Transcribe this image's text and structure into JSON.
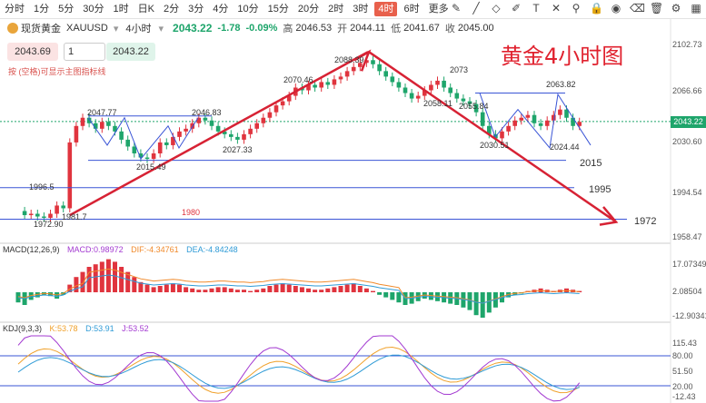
{
  "toolbar": {
    "timeframes": [
      "分时",
      "1分",
      "5分",
      "30分",
      "1时",
      "日K",
      "2分",
      "3分",
      "4分",
      "10分",
      "15分",
      "20分",
      "2时",
      "3时",
      "4时",
      "6时",
      "更多"
    ],
    "active_index": 14,
    "tool_icons": [
      "pencil-icon",
      "trend-icon",
      "shapes-icon",
      "brush-icon",
      "text-icon",
      "cross-icon",
      "magnet-icon",
      "lock-icon",
      "eye-icon",
      "eraser-icon",
      "delete-icon",
      "settings-icon",
      "layout-icon"
    ]
  },
  "info": {
    "symbol": "现货黄金",
    "code": "XAUUSD",
    "timeframe": "4小时",
    "price": "2043.22",
    "change": "-1.78",
    "change_pct": "-0.09%",
    "high_label": "高",
    "high": "2046.53",
    "open_label": "开",
    "open": "2044.11",
    "low_label": "低",
    "low": "2041.67",
    "close_label": "收",
    "close": "2045.00"
  },
  "order": {
    "sell": "2043.69",
    "qty": "1",
    "buy": "2043.22"
  },
  "hint": "按 (空格)可显示主图指标线",
  "title": "黄金4小时图",
  "price_axis": [
    "2102.73",
    "2066.66",
    "2043.22",
    "2030.60",
    "1994.54",
    "1958.47"
  ],
  "macd": {
    "label": "MACD(12,26,9)",
    "macd": "MACD:0.98972",
    "dif": "DIF:-4.34761",
    "dea": "DEA:-4.84248",
    "axis": [
      "17.07349",
      "2.08504",
      "-12.90341"
    ]
  },
  "kdj": {
    "label": "KDJ(9,3,3)",
    "k": "K:53.78",
    "d": "D:53.91",
    "j": "J:53.52",
    "axis": [
      "115.43",
      "80.00",
      "51.50",
      "20.00",
      "-12.43"
    ]
  },
  "annotations": [
    "2047.77",
    "2015.49",
    "2046.83",
    "2027.33",
    "2070.46",
    "2088.39",
    "2073",
    "2058.11",
    "2055.84",
    "2063.82",
    "2030.51",
    "2024.44",
    "1996.5",
    "1981.7",
    "1972.90",
    "1980",
    "2015",
    "1995",
    "1972"
  ],
  "colors": {
    "up": "#e0343e",
    "down": "#1ea56b",
    "line": "#3a55d6",
    "arrow": "#d72234"
  }
}
